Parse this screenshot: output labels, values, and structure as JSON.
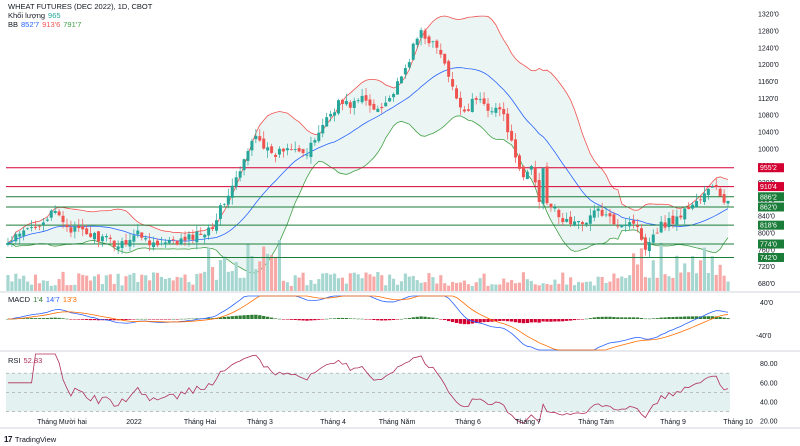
{
  "header": {
    "title": "WHEAT FUTURES (DEC 2022), 1D, CBOT",
    "volume_label": "Khối lượng",
    "volume_value": "965",
    "bb_label": "BB",
    "bb_values": [
      "852'7",
      "913'6",
      "791'7"
    ]
  },
  "macd_legend": {
    "label": "MACD",
    "values": [
      "1'4",
      "14'7",
      "13'3"
    ]
  },
  "rsi_legend": {
    "label": "RSI",
    "value": "52.83"
  },
  "footer": {
    "brand": "TradingView"
  },
  "colors": {
    "up": "#26a69a",
    "down": "#ef5350",
    "vol_up": "#a5d6d0",
    "vol_down": "#f7a9a7",
    "bb_upper": "#ef5350",
    "bb_lower": "#43a047",
    "bb_mid": "#2962ff",
    "bb_fill": "#e6f4f1",
    "level_red": "#d50032",
    "level_green": "#1b7d3a",
    "macd_line": "#2962ff",
    "signal_line": "#ff6d00",
    "hist_pos": "#2e7d32",
    "hist_neg": "#d50032",
    "rsi": "#b0305a",
    "rsi_band": "#e3f2f0"
  },
  "chart_data": [
    {
      "type": "candlestick",
      "title": "WHEAT FUTURES (DEC 2022), 1D, CBOT",
      "price_axis": [
        "1320'0",
        "1280'0",
        "1240'0",
        "1200'0",
        "1160'0",
        "1120'0",
        "1080'0",
        "1040'0",
        "1000'0",
        "960'0",
        "920'0",
        "880'0",
        "840'0",
        "800'0",
        "760'0",
        "720'0",
        "680'0"
      ],
      "ylim": [
        660,
        1330
      ],
      "x_labels": [
        "Tháng Mười hai",
        "2022",
        "Tháng Hai",
        "Tháng 3",
        "Tháng 4",
        "Tháng Năm",
        "Tháng 6",
        "Tháng 7",
        "Tháng Tám",
        "Tháng 9",
        "Tháng 10"
      ],
      "levels": [
        {
          "label": "955'2",
          "value": 955.25,
          "color": "red"
        },
        {
          "label": "910'4",
          "value": 910.5,
          "color": "red"
        },
        {
          "label": "886'2",
          "value": 886.25,
          "color": "green"
        },
        {
          "label": "862'0",
          "value": 862,
          "color": "green"
        },
        {
          "label": "818'6",
          "value": 818.75,
          "color": "green"
        },
        {
          "label": "774'0",
          "value": 774,
          "color": "green"
        },
        {
          "label": "742'0",
          "value": 742,
          "color": "green"
        }
      ],
      "anchors": [
        [
          0,
          775
        ],
        [
          7,
          820
        ],
        [
          12,
          848
        ],
        [
          16,
          810
        ],
        [
          23,
          790
        ],
        [
          28,
          772
        ],
        [
          33,
          800
        ],
        [
          38,
          770
        ],
        [
          44,
          780
        ],
        [
          49,
          800
        ],
        [
          52,
          820
        ],
        [
          55,
          875
        ],
        [
          59,
          945
        ],
        [
          63,
          1040
        ],
        [
          67,
          980
        ],
        [
          70,
          1000
        ],
        [
          73,
          1010
        ],
        [
          76,
          985
        ],
        [
          80,
          1060
        ],
        [
          84,
          1110
        ],
        [
          87,
          1105
        ],
        [
          90,
          1120
        ],
        [
          93,
          1095
        ],
        [
          97,
          1120
        ],
        [
          100,
          1165
        ],
        [
          103,
          1240
        ],
        [
          105,
          1280
        ],
        [
          107,
          1260
        ],
        [
          110,
          1225
        ],
        [
          113,
          1140
        ],
        [
          116,
          1090
        ],
        [
          119,
          1120
        ],
        [
          122,
          1100
        ],
        [
          125,
          1095
        ],
        [
          127,
          1050
        ],
        [
          129,
          970
        ],
        [
          131,
          930
        ],
        [
          133,
          960
        ],
        [
          135,
          880
        ],
        [
          136,
          960
        ],
        [
          137,
          880
        ],
        [
          140,
          835
        ],
        [
          145,
          820
        ],
        [
          150,
          855
        ],
        [
          153,
          830
        ],
        [
          156,
          825
        ],
        [
          159,
          828
        ],
        [
          162,
          770
        ],
        [
          164,
          800
        ],
        [
          166,
          820
        ],
        [
          170,
          835
        ],
        [
          174,
          870
        ],
        [
          176,
          880
        ],
        [
          178,
          900
        ],
        [
          180,
          912
        ],
        [
          182,
          870
        ]
      ],
      "volume_ylim": [
        0,
        50000
      ],
      "macd_axis": [
        "40'0",
        "-40'0"
      ],
      "rsi_axis": [
        "80.00",
        "60.00",
        "40.00",
        "20.00"
      ],
      "rsi_band": [
        30,
        70
      ],
      "rsi_ylim": [
        15,
        90
      ]
    }
  ]
}
